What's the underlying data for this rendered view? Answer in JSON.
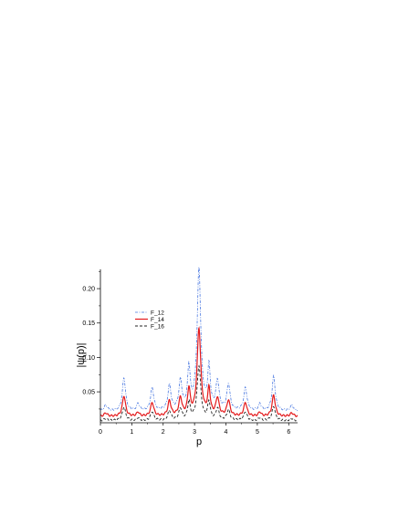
{
  "chart_data": {
    "type": "line",
    "xlabel": "p",
    "ylabel": "|ψ(p)|",
    "xlim": [
      0,
      6.283
    ],
    "ylim": [
      0.005,
      0.228
    ],
    "xticks": [
      0,
      1,
      2,
      3,
      4,
      5,
      6
    ],
    "yticks": [
      0.05,
      0.1,
      0.15,
      0.2
    ],
    "ytick_labels": [
      "0.05",
      "0.10",
      "0.15",
      "0.20"
    ],
    "grid": false,
    "legend_position": "upper-left",
    "peaks": [
      {
        "x": 0.17,
        "w": 0.06
      },
      {
        "x": 0.75,
        "w": 0.06
      },
      {
        "x": 1.2,
        "w": 0.05
      },
      {
        "x": 1.65,
        "w": 0.06
      },
      {
        "x": 2.2,
        "w": 0.06
      },
      {
        "x": 2.55,
        "w": 0.06
      },
      {
        "x": 2.82,
        "w": 0.05
      },
      {
        "x": 3.14,
        "w": 0.07
      },
      {
        "x": 3.46,
        "w": 0.05
      },
      {
        "x": 3.73,
        "w": 0.06
      },
      {
        "x": 4.08,
        "w": 0.06
      },
      {
        "x": 4.62,
        "w": 0.06
      },
      {
        "x": 5.08,
        "w": 0.05
      },
      {
        "x": 5.52,
        "w": 0.06
      },
      {
        "x": 6.1,
        "w": 0.06
      }
    ],
    "series": [
      {
        "name": "F_12",
        "color": "#4a78e0",
        "dash": "3,1.5,1,1.5",
        "width": 0.8,
        "base": 0.022,
        "amps": [
          0.008,
          0.048,
          0.01,
          0.033,
          0.036,
          0.042,
          0.06,
          0.205,
          0.06,
          0.042,
          0.038,
          0.033,
          0.01,
          0.05,
          0.008
        ]
      },
      {
        "name": "F_14",
        "color": "#e41a1c",
        "dash": "",
        "width": 1.2,
        "base": 0.014,
        "amps": [
          0.005,
          0.03,
          0.006,
          0.02,
          0.022,
          0.026,
          0.038,
          0.127,
          0.038,
          0.026,
          0.023,
          0.02,
          0.006,
          0.031,
          0.005
        ]
      },
      {
        "name": "F_16",
        "color": "#222222",
        "dash": "3,2",
        "width": 0.9,
        "base": 0.008,
        "amps": [
          0.003,
          0.02,
          0.004,
          0.013,
          0.014,
          0.017,
          0.026,
          0.079,
          0.026,
          0.017,
          0.015,
          0.013,
          0.004,
          0.021,
          0.003
        ]
      }
    ]
  }
}
